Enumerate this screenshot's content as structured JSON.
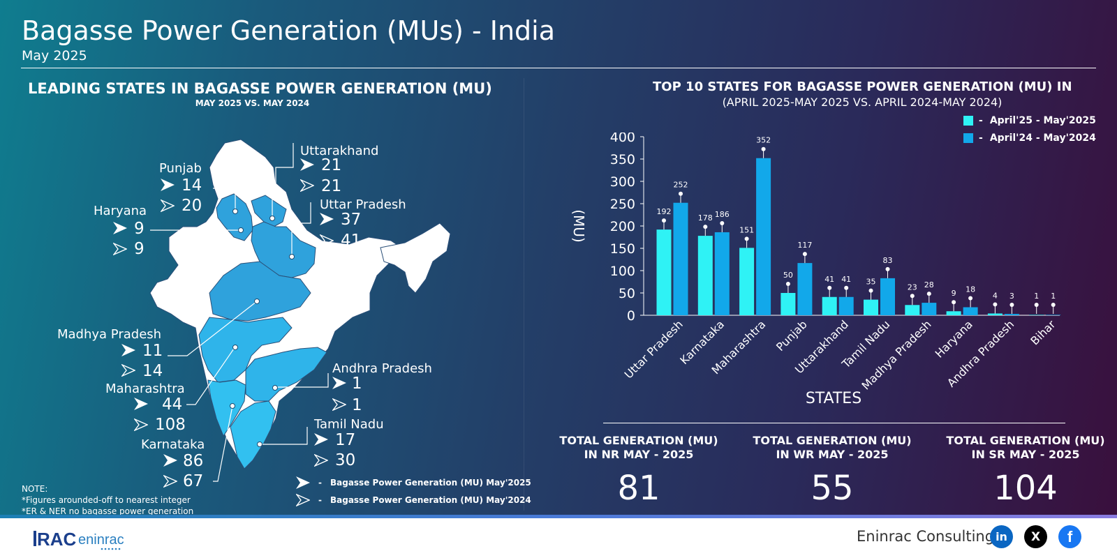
{
  "header": {
    "title": "Bagasse Power Generation (MUs) - India",
    "subtitle": "May 2025"
  },
  "map_panel": {
    "heading": "LEADING STATES IN BAGASSE POWER GENERATION (MU)",
    "subheading": "MAY 2025 VS. MAY 2024",
    "states": [
      {
        "name": "Uttarakhand",
        "may2025": "21",
        "may2024": "21"
      },
      {
        "name": "Punjab",
        "may2025": "14",
        "may2024": "20"
      },
      {
        "name": "Haryana",
        "may2025": "9",
        "may2024": "9"
      },
      {
        "name": "Uttar Pradesh",
        "may2025": "37",
        "may2024": "41"
      },
      {
        "name": "Madhya Pradesh",
        "may2025": "11",
        "may2024": "14"
      },
      {
        "name": "Maharashtra",
        "may2025": "44",
        "may2024": "108"
      },
      {
        "name": "Andhra Pradesh",
        "may2025": "1",
        "may2024": "1"
      },
      {
        "name": "Karnataka",
        "may2025": "86",
        "may2024": "67"
      },
      {
        "name": "Tamil Nadu",
        "may2025": "17",
        "may2024": "30"
      }
    ],
    "legend": {
      "dash": "-",
      "current": "Bagasse Power Generation (MU) May'2025",
      "previous": "Bagasse Power Generation (MU) May'2024"
    },
    "note": {
      "title": "NOTE:",
      "line1": "*Figures arounded-off to nearest integer",
      "line2": "*ER & NER no bagasse power generation"
    },
    "colors": {
      "highlight": "#2bb5ea",
      "other": "#ffffff"
    }
  },
  "chart_panel": {
    "heading": "TOP 10 STATES FOR BAGASSE POWER GENERATION (MU) IN",
    "subheading": "(APRIL 2025-MAY 2025 VS. APRIL 2024-MAY 2024)",
    "legend_dash": "-"
  },
  "chart_data": {
    "type": "bar",
    "title": "TOP 10 STATES FOR BAGASSE POWER GENERATION (MU) IN (APRIL 2025-MAY 2025 VS. APRIL 2024-MAY 2024)",
    "xlabel": "STATES",
    "ylabel": "(MU)",
    "ylim": [
      0,
      400
    ],
    "yticks": [
      0,
      50,
      100,
      150,
      200,
      250,
      300,
      350,
      400
    ],
    "categories": [
      "Uttar Pradesh",
      "Karnataka",
      "Maharashtra",
      "Punjab",
      "Uttarakhand",
      "Tamil Nadu",
      "Madhya Pradesh",
      "Haryana",
      "Andhra Pradesh",
      "Bihar"
    ],
    "series": [
      {
        "name": "April'25 - May'2025",
        "color": "#2ff2f5",
        "values": [
          192,
          178,
          151,
          50,
          41,
          35,
          23,
          9,
          4,
          1
        ]
      },
      {
        "name": "April'24 - May'2024",
        "color": "#12a8ea",
        "values": [
          252,
          186,
          352,
          117,
          41,
          83,
          28,
          18,
          3,
          1
        ]
      }
    ],
    "legend_position": "top-right",
    "grid": false
  },
  "totals": [
    {
      "label1": "TOTAL  GENERATION (MU)",
      "label2": "IN NR MAY - 2025",
      "value": "81"
    },
    {
      "label1": "TOTAL  GENERATION (MU)",
      "label2": "IN WR MAY - 2025",
      "value": "55"
    },
    {
      "label1": "TOTAL  GENERATION (MU)",
      "label2": "IN SR MAY - 2025",
      "value": "104"
    }
  ],
  "footer": {
    "brand": "Eninrac Consulting",
    "logo_text_a": "RAC",
    "logo_text_b": "eninrac",
    "social": [
      {
        "icon": "linkedin-icon",
        "glyph": "in",
        "color": "#0a66c2"
      },
      {
        "icon": "x-icon",
        "glyph": "X",
        "color": "#000000"
      },
      {
        "icon": "facebook-icon",
        "glyph": "f",
        "color": "#1877f2"
      }
    ]
  }
}
